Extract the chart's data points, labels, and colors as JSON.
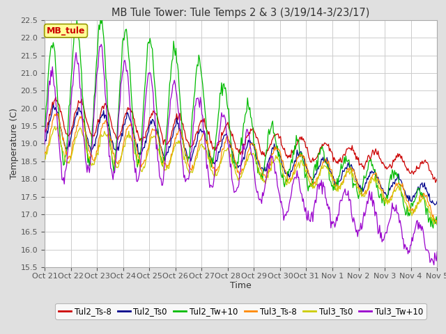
{
  "title": "MB Tule Tower: Tule Temps 2 & 3 (3/19/14-3/23/17)",
  "xlabel": "Time",
  "ylabel": "Temperature (C)",
  "ylim": [
    15.5,
    22.5
  ],
  "yticks": [
    15.5,
    16.0,
    16.5,
    17.0,
    17.5,
    18.0,
    18.5,
    19.0,
    19.5,
    20.0,
    20.5,
    21.0,
    21.5,
    22.0,
    22.5
  ],
  "xtick_labels": [
    "Oct 21",
    "Oct 22",
    "Oct 23",
    "Oct 24",
    "Oct 25",
    "Oct 26",
    "Oct 27",
    "Oct 28",
    "Oct 29",
    "Oct 30",
    "Oct 31",
    "Nov 1",
    "Nov 2",
    "Nov 3",
    "Nov 4",
    "Nov 5"
  ],
  "legend_label": "MB_tule",
  "line_labels": [
    "Tul2_Ts-8",
    "Tul2_Ts0",
    "Tul2_Tw+10",
    "Tul3_Ts-8",
    "Tul3_Ts0",
    "Tul3_Tw+10"
  ],
  "line_colors": [
    "#cc0000",
    "#00008b",
    "#00bb00",
    "#ff8800",
    "#cccc00",
    "#9900cc"
  ],
  "background_color": "#e0e0e0",
  "plot_bg_color": "#ffffff",
  "grid_color": "#cccccc",
  "title_fontsize": 10.5,
  "axis_fontsize": 9,
  "tick_fontsize": 8,
  "legend_fontsize": 8.5
}
